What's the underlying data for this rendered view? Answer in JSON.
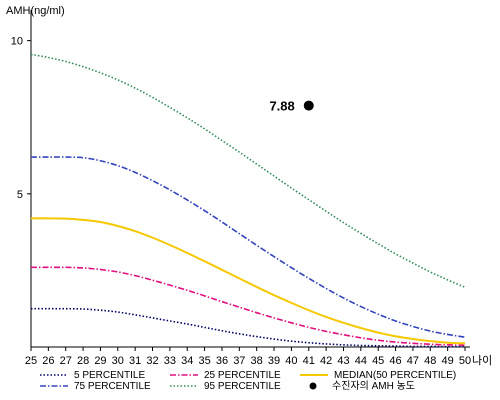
{
  "chart_data": {
    "type": "line",
    "ylabel": "AMH(ng/ml)",
    "xlabel": "나이",
    "xlim": [
      25,
      50
    ],
    "ylim": [
      0,
      11
    ],
    "x_ticks": [
      25,
      26,
      27,
      28,
      29,
      30,
      31,
      32,
      33,
      34,
      35,
      36,
      37,
      38,
      39,
      40,
      41,
      42,
      43,
      44,
      45,
      46,
      47,
      48,
      49,
      50
    ],
    "y_ticks": [
      5,
      10
    ],
    "grid": false,
    "legend_position": "bottom",
    "x": [
      25,
      26,
      27,
      28,
      29,
      30,
      31,
      32,
      33,
      34,
      35,
      36,
      37,
      38,
      39,
      40,
      41,
      42,
      43,
      44,
      45,
      46,
      47,
      48,
      49,
      50
    ],
    "series": [
      {
        "name": "5 PERCENTILE",
        "color": "#000066",
        "dash": "dotted",
        "values": [
          1.25,
          1.25,
          1.25,
          1.24,
          1.2,
          1.14,
          1.05,
          0.95,
          0.85,
          0.75,
          0.64,
          0.53,
          0.43,
          0.34,
          0.26,
          0.19,
          0.14,
          0.1,
          0.07,
          0.05,
          0.04,
          0.03,
          0.02,
          0.02,
          0.01,
          0.01
        ]
      },
      {
        "name": "25 PERCENTILE",
        "color": "#e0117f",
        "dash": "dashdot",
        "values": [
          2.6,
          2.6,
          2.6,
          2.58,
          2.53,
          2.45,
          2.33,
          2.18,
          2.02,
          1.85,
          1.67,
          1.48,
          1.3,
          1.12,
          0.95,
          0.79,
          0.64,
          0.51,
          0.4,
          0.3,
          0.22,
          0.16,
          0.12,
          0.09,
          0.07,
          0.06
        ]
      },
      {
        "name": "MEDIAN(50 PERCENTILE)",
        "color": "#f5c800",
        "dash": "solid",
        "values": [
          4.2,
          4.2,
          4.19,
          4.15,
          4.08,
          3.95,
          3.78,
          3.57,
          3.33,
          3.07,
          2.8,
          2.52,
          2.24,
          1.96,
          1.69,
          1.44,
          1.2,
          0.98,
          0.79,
          0.62,
          0.47,
          0.35,
          0.26,
          0.19,
          0.14,
          0.12
        ]
      },
      {
        "name": "75 PERCENTILE",
        "color": "#3344bb",
        "dash": "dashdot",
        "values": [
          6.2,
          6.2,
          6.2,
          6.18,
          6.08,
          5.92,
          5.7,
          5.43,
          5.13,
          4.8,
          4.45,
          4.08,
          3.7,
          3.32,
          2.95,
          2.59,
          2.24,
          1.91,
          1.6,
          1.32,
          1.07,
          0.85,
          0.67,
          0.52,
          0.41,
          0.32
        ]
      },
      {
        "name": "95 PERCENTILE",
        "color": "#2e8b57",
        "dash": "dotted",
        "values": [
          9.55,
          9.45,
          9.32,
          9.15,
          8.95,
          8.72,
          8.45,
          8.15,
          7.82,
          7.48,
          7.12,
          6.74,
          6.36,
          5.97,
          5.58,
          5.19,
          4.81,
          4.43,
          4.06,
          3.71,
          3.37,
          3.04,
          2.74,
          2.45,
          2.19,
          1.95
        ]
      }
    ],
    "patient_point": {
      "name": "수진자의 AMH 농도",
      "x": 41,
      "y": 7.88,
      "label": "7.88",
      "color": "#000000"
    }
  }
}
